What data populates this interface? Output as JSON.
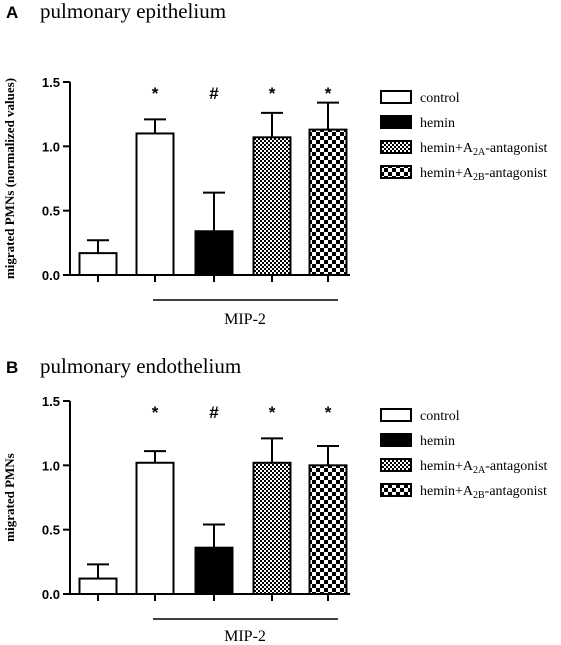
{
  "chart_data": [
    {
      "type": "bar",
      "panel_letter": "A",
      "title": "pulmonary epithelium",
      "ylabel": "migrated PMNs (normalized values)",
      "xlabel": "",
      "group_label": "MIP-2",
      "ylim": [
        0,
        1.5
      ],
      "yticks": [
        "0.0",
        "0.5",
        "1.0",
        "1.5"
      ],
      "grid": false,
      "legend_position": "right",
      "series": [
        {
          "key": "unstim",
          "fill": "open",
          "value": 0.17,
          "error": 0.1,
          "marker": ""
        },
        {
          "key": "control",
          "fill": "open",
          "value": 1.1,
          "error": 0.11,
          "marker": "*"
        },
        {
          "key": "hemin",
          "fill": "solid",
          "value": 0.34,
          "error": 0.3,
          "marker": "#"
        },
        {
          "key": "a2a",
          "fill": "fine-check",
          "value": 1.07,
          "error": 0.19,
          "marker": "*"
        },
        {
          "key": "a2b",
          "fill": "coarse-check",
          "value": 1.13,
          "error": 0.21,
          "marker": "*"
        }
      ]
    },
    {
      "type": "bar",
      "panel_letter": "B",
      "title": "pulmonary endothelium",
      "ylabel": "migrated PMNs",
      "xlabel": "",
      "group_label": "MIP-2",
      "ylim": [
        0,
        1.5
      ],
      "yticks": [
        "0.0",
        "0.5",
        "1.0",
        "1.5"
      ],
      "grid": false,
      "legend_position": "right",
      "series": [
        {
          "key": "unstim",
          "fill": "open",
          "value": 0.12,
          "error": 0.11,
          "marker": ""
        },
        {
          "key": "control",
          "fill": "open",
          "value": 1.02,
          "error": 0.09,
          "marker": "*"
        },
        {
          "key": "hemin",
          "fill": "solid",
          "value": 0.36,
          "error": 0.18,
          "marker": "#"
        },
        {
          "key": "a2a",
          "fill": "fine-check",
          "value": 1.02,
          "error": 0.19,
          "marker": "*"
        },
        {
          "key": "a2b",
          "fill": "coarse-check",
          "value": 1.0,
          "error": 0.15,
          "marker": "*"
        }
      ]
    }
  ],
  "legend": [
    {
      "fill": "open",
      "text": "control"
    },
    {
      "fill": "solid",
      "text": "hemin"
    },
    {
      "fill": "fine-check",
      "text": "hemin+",
      "sym": "A",
      "sub": "2A",
      "tail": "-antagonist"
    },
    {
      "fill": "coarse-check",
      "text": "hemin+",
      "sym": "A",
      "sub": "2B",
      "tail": "-antagonist"
    }
  ]
}
